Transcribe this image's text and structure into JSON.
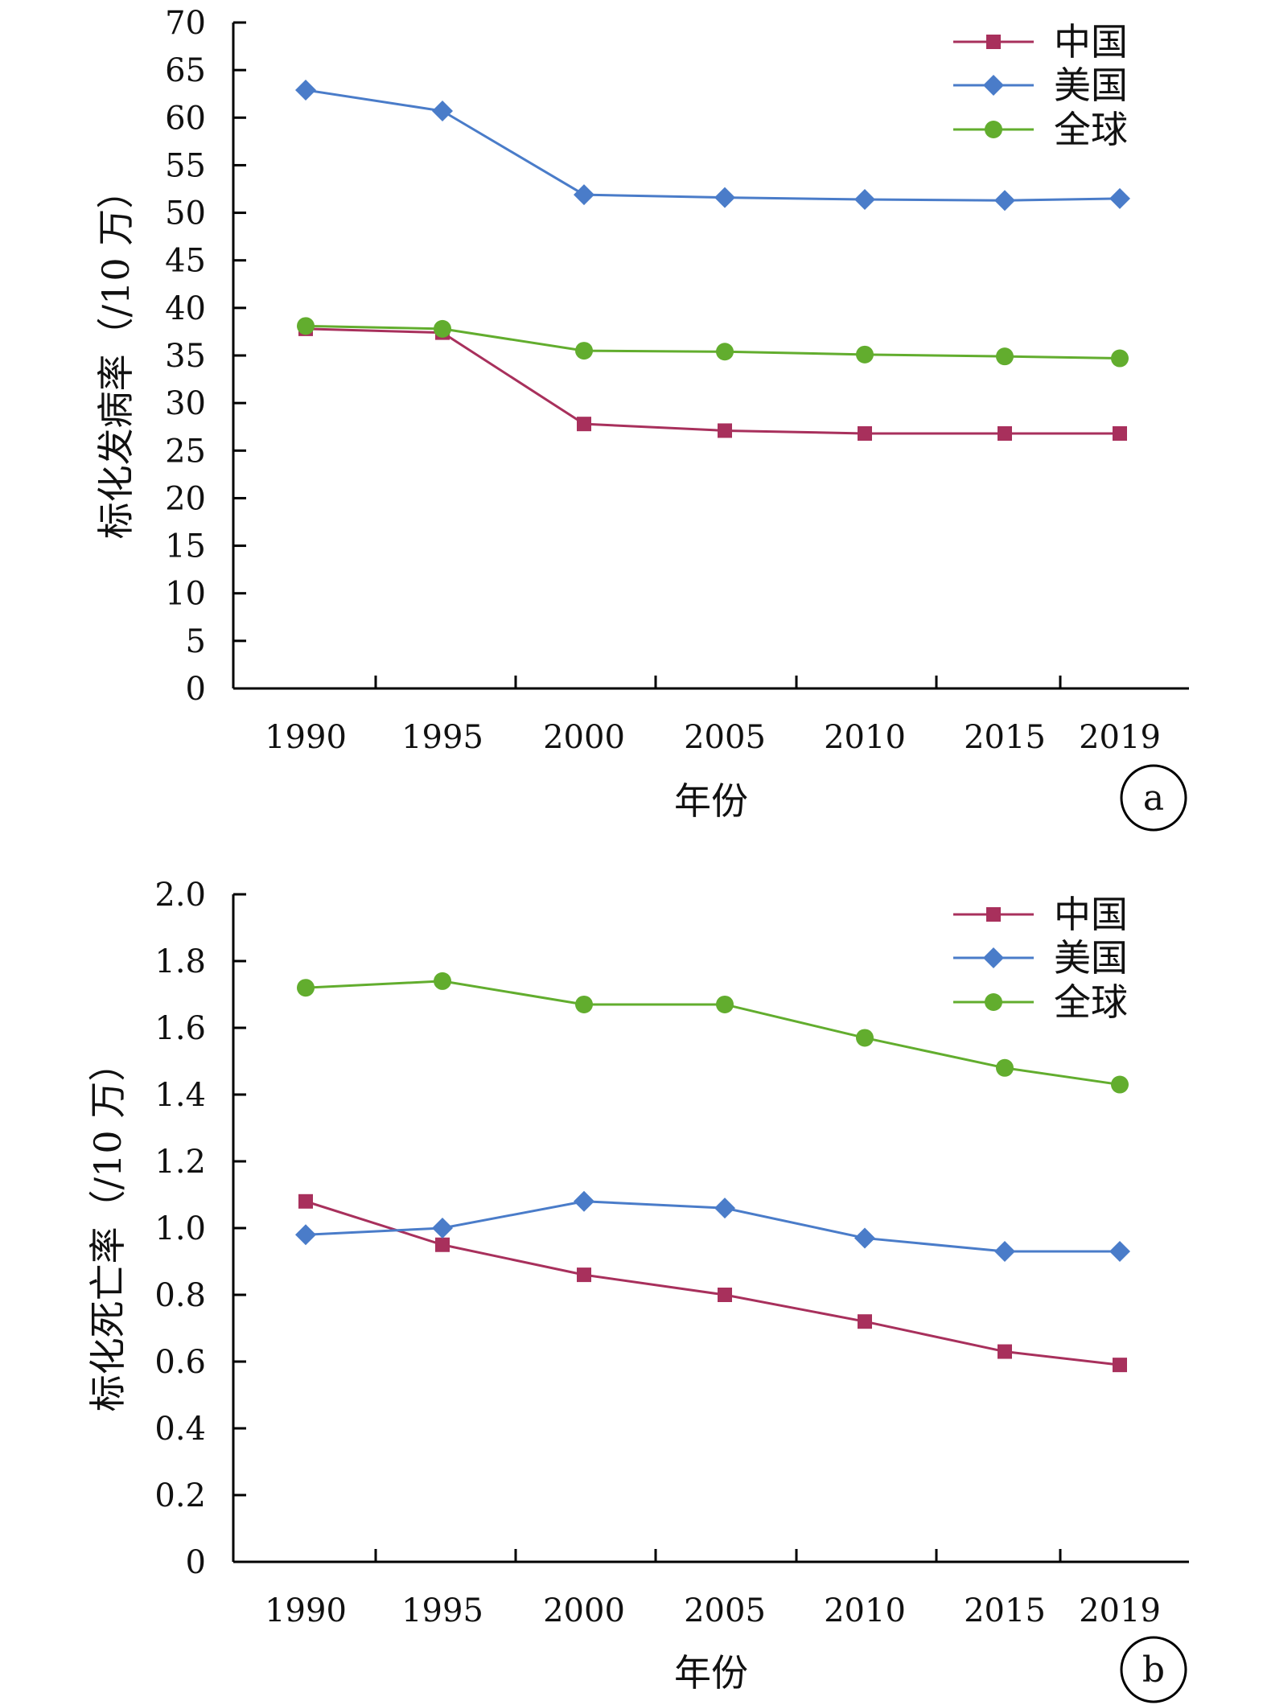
{
  "chart_data": [
    {
      "type": "line",
      "panel_label": "a",
      "xlabel": "年份",
      "ylabel": "标化发病率（/10 万）",
      "categories": [
        "1990",
        "1995",
        "2000",
        "2005",
        "2010",
        "2015",
        "2019"
      ],
      "ylim": [
        0,
        70
      ],
      "yticks": [
        "0",
        "5",
        "10",
        "15",
        "20",
        "25",
        "30",
        "35",
        "40",
        "45",
        "50",
        "55",
        "60",
        "65",
        "70"
      ],
      "legend_position": "top-right",
      "series": [
        {
          "name": "中国",
          "color": "#a8305c",
          "marker": "square",
          "values": [
            37.8,
            37.4,
            27.8,
            27.1,
            26.8,
            26.8,
            26.8
          ]
        },
        {
          "name": "美国",
          "color": "#4a7cc9",
          "marker": "diamond",
          "values": [
            62.9,
            60.7,
            51.9,
            51.6,
            51.4,
            51.3,
            51.5
          ]
        },
        {
          "name": "全球",
          "color": "#62ad2e",
          "marker": "circle",
          "values": [
            38.1,
            37.8,
            35.5,
            35.4,
            35.1,
            34.9,
            34.7
          ]
        }
      ]
    },
    {
      "type": "line",
      "panel_label": "b",
      "xlabel": "年份",
      "ylabel": "标化死亡率（/10 万）",
      "categories": [
        "1990",
        "1995",
        "2000",
        "2005",
        "2010",
        "2015",
        "2019"
      ],
      "ylim": [
        0,
        2.0
      ],
      "yticks": [
        "0",
        "0.2",
        "0.4",
        "0.6",
        "0.8",
        "1.0",
        "1.2",
        "1.4",
        "1.6",
        "1.8",
        "2.0"
      ],
      "legend_position": "top-right",
      "series": [
        {
          "name": "中国",
          "color": "#a8305c",
          "marker": "square",
          "values": [
            1.08,
            0.95,
            0.86,
            0.8,
            0.72,
            0.63,
            0.59
          ]
        },
        {
          "name": "美国",
          "color": "#4a7cc9",
          "marker": "diamond",
          "values": [
            0.98,
            1.0,
            1.08,
            1.06,
            0.97,
            0.93,
            0.93
          ]
        },
        {
          "name": "全球",
          "color": "#62ad2e",
          "marker": "circle",
          "values": [
            1.72,
            1.74,
            1.67,
            1.67,
            1.57,
            1.48,
            1.43
          ]
        }
      ]
    }
  ]
}
